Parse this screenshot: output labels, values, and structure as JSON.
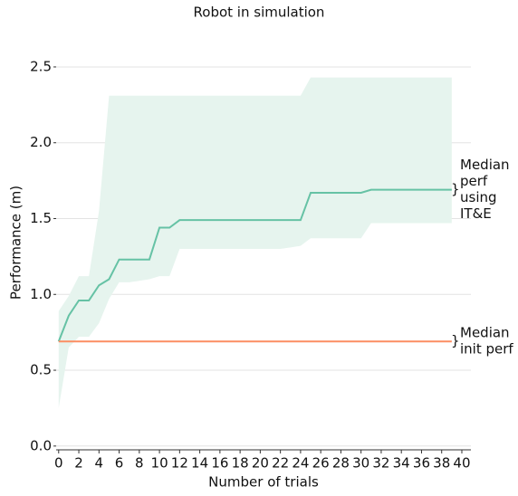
{
  "chart_data": {
    "type": "line",
    "title": "Robot in simulation",
    "x_label": "Number of trials",
    "y_label": "Performance (m)",
    "xlim": [
      -0.25,
      40.9
    ],
    "ylim": [
      -0.025,
      2.52
    ],
    "xticks": [
      0,
      2,
      4,
      6,
      8,
      10,
      12,
      14,
      16,
      18,
      20,
      22,
      24,
      26,
      28,
      30,
      32,
      34,
      36,
      38,
      40
    ],
    "yticks": [
      {
        "value": 0,
        "label": "0.0"
      },
      0.5,
      {
        "value": 1,
        "label": "1.0"
      },
      1.5,
      {
        "value": 2,
        "label": "2.0"
      },
      2.5
    ],
    "grid": true,
    "brace": "}",
    "series": [
      {
        "color": "#66c2a5",
        "band_color": "#e6f4ee",
        "label": [
          "Median",
          "perf",
          "using",
          "IT&E"
        ],
        "x": [
          0,
          1,
          2,
          3,
          4,
          5,
          6,
          7,
          8,
          9,
          10,
          11,
          12,
          13,
          14,
          15,
          16,
          17,
          18,
          19,
          20,
          21,
          22,
          23,
          24,
          25,
          26,
          27,
          28,
          29,
          30,
          31,
          32,
          33,
          34,
          35,
          36,
          37,
          38,
          39
        ],
        "values": [
          0.69,
          0.86,
          0.96,
          0.96,
          1.06,
          1.1,
          1.23,
          1.23,
          1.23,
          1.23,
          1.44,
          1.44,
          1.49,
          1.49,
          1.49,
          1.49,
          1.49,
          1.49,
          1.49,
          1.49,
          1.49,
          1.49,
          1.49,
          1.49,
          1.49,
          1.67,
          1.67,
          1.67,
          1.67,
          1.67,
          1.67,
          1.69,
          1.69,
          1.69,
          1.69,
          1.69,
          1.69,
          1.69,
          1.69,
          1.69
        ],
        "upper": [
          0.89,
          0.99,
          1.12,
          1.12,
          1.55,
          2.31,
          2.31,
          2.31,
          2.31,
          2.31,
          2.31,
          2.31,
          2.31,
          2.31,
          2.31,
          2.31,
          2.31,
          2.31,
          2.31,
          2.31,
          2.31,
          2.31,
          2.31,
          2.31,
          2.31,
          2.43,
          2.43,
          2.43,
          2.43,
          2.43,
          2.43,
          2.43,
          2.43,
          2.43,
          2.43,
          2.43,
          2.43,
          2.43,
          2.43,
          2.43
        ],
        "lower": [
          0.25,
          0.65,
          0.72,
          0.72,
          0.81,
          0.97,
          1.08,
          1.08,
          1.09,
          1.1,
          1.12,
          1.12,
          1.3,
          1.3,
          1.3,
          1.3,
          1.3,
          1.3,
          1.3,
          1.3,
          1.3,
          1.3,
          1.3,
          1.31,
          1.32,
          1.37,
          1.37,
          1.37,
          1.37,
          1.37,
          1.37,
          1.47,
          1.47,
          1.47,
          1.47,
          1.47,
          1.47,
          1.47,
          1.47,
          1.47
        ]
      },
      {
        "color": "#fc8d62",
        "label": [
          "Median",
          "init perf"
        ],
        "x": [
          0,
          39
        ],
        "values": [
          0.69,
          0.69
        ]
      }
    ]
  }
}
